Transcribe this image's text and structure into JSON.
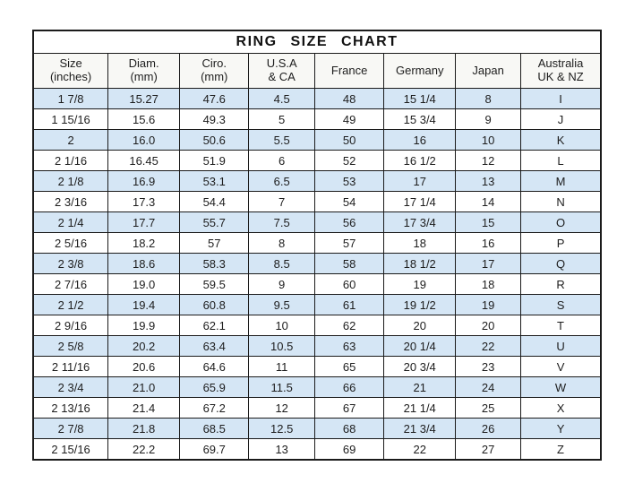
{
  "chart_data": {
    "type": "table",
    "title": "RING  SIZE  CHART",
    "columns": [
      {
        "id": "size-inches",
        "label": "Size\n(inches)"
      },
      {
        "id": "diam-mm",
        "label": "Diam.\n(mm)"
      },
      {
        "id": "ciro-mm",
        "label": "Ciro.\n(mm)"
      },
      {
        "id": "usa-ca",
        "label": "U.S.A\n& CA"
      },
      {
        "id": "france",
        "label": "France"
      },
      {
        "id": "germany",
        "label": "Germany"
      },
      {
        "id": "japan",
        "label": "Japan"
      },
      {
        "id": "australia-uk-nz",
        "label": "Australia\nUK & NZ"
      }
    ],
    "rows": [
      [
        "1 7/8",
        "15.27",
        "47.6",
        "4.5",
        "48",
        "15 1/4",
        "8",
        "I"
      ],
      [
        "1 15/16",
        "15.6",
        "49.3",
        "5",
        "49",
        "15 3/4",
        "9",
        "J"
      ],
      [
        "2",
        "16.0",
        "50.6",
        "5.5",
        "50",
        "16",
        "10",
        "K"
      ],
      [
        "2 1/16",
        "16.45",
        "51.9",
        "6",
        "52",
        "16 1/2",
        "12",
        "L"
      ],
      [
        "2 1/8",
        "16.9",
        "53.1",
        "6.5",
        "53",
        "17",
        "13",
        "M"
      ],
      [
        "2 3/16",
        "17.3",
        "54.4",
        "7",
        "54",
        "17 1/4",
        "14",
        "N"
      ],
      [
        "2 1/4",
        "17.7",
        "55.7",
        "7.5",
        "56",
        "17 3/4",
        "15",
        "O"
      ],
      [
        "2 5/16",
        "18.2",
        "57",
        "8",
        "57",
        "18",
        "16",
        "P"
      ],
      [
        "2 3/8",
        "18.6",
        "58.3",
        "8.5",
        "58",
        "18 1/2",
        "17",
        "Q"
      ],
      [
        "2 7/16",
        "19.0",
        "59.5",
        "9",
        "60",
        "19",
        "18",
        "R"
      ],
      [
        "2 1/2",
        "19.4",
        "60.8",
        "9.5",
        "61",
        "19 1/2",
        "19",
        "S"
      ],
      [
        "2 9/16",
        "19.9",
        "62.1",
        "10",
        "62",
        "20",
        "20",
        "T"
      ],
      [
        "2 5/8",
        "20.2",
        "63.4",
        "10.5",
        "63",
        "20 1/4",
        "22",
        "U"
      ],
      [
        "2 11/16",
        "20.6",
        "64.6",
        "11",
        "65",
        "20 3/4",
        "23",
        "V"
      ],
      [
        "2 3/4",
        "21.0",
        "65.9",
        "11.5",
        "66",
        "21",
        "24",
        "W"
      ],
      [
        "2 13/16",
        "21.4",
        "67.2",
        "12",
        "67",
        "21 1/4",
        "25",
        "X"
      ],
      [
        "2 7/8",
        "21.8",
        "68.5",
        "12.5",
        "68",
        "21 3/4",
        "26",
        "Y"
      ],
      [
        "2 15/16",
        "22.2",
        "69.7",
        "13",
        "69",
        "22",
        "27",
        "Z"
      ]
    ],
    "layout": {
      "alt_row_color": "#d5e6f5",
      "base_row_color": "#ffffff",
      "border_color": "#1b1b1b",
      "text_color": "#1d1d1d",
      "header_bg_color": "#f8f8f5",
      "alt_rows_start_at_first_data_row": true,
      "grid": true
    }
  }
}
